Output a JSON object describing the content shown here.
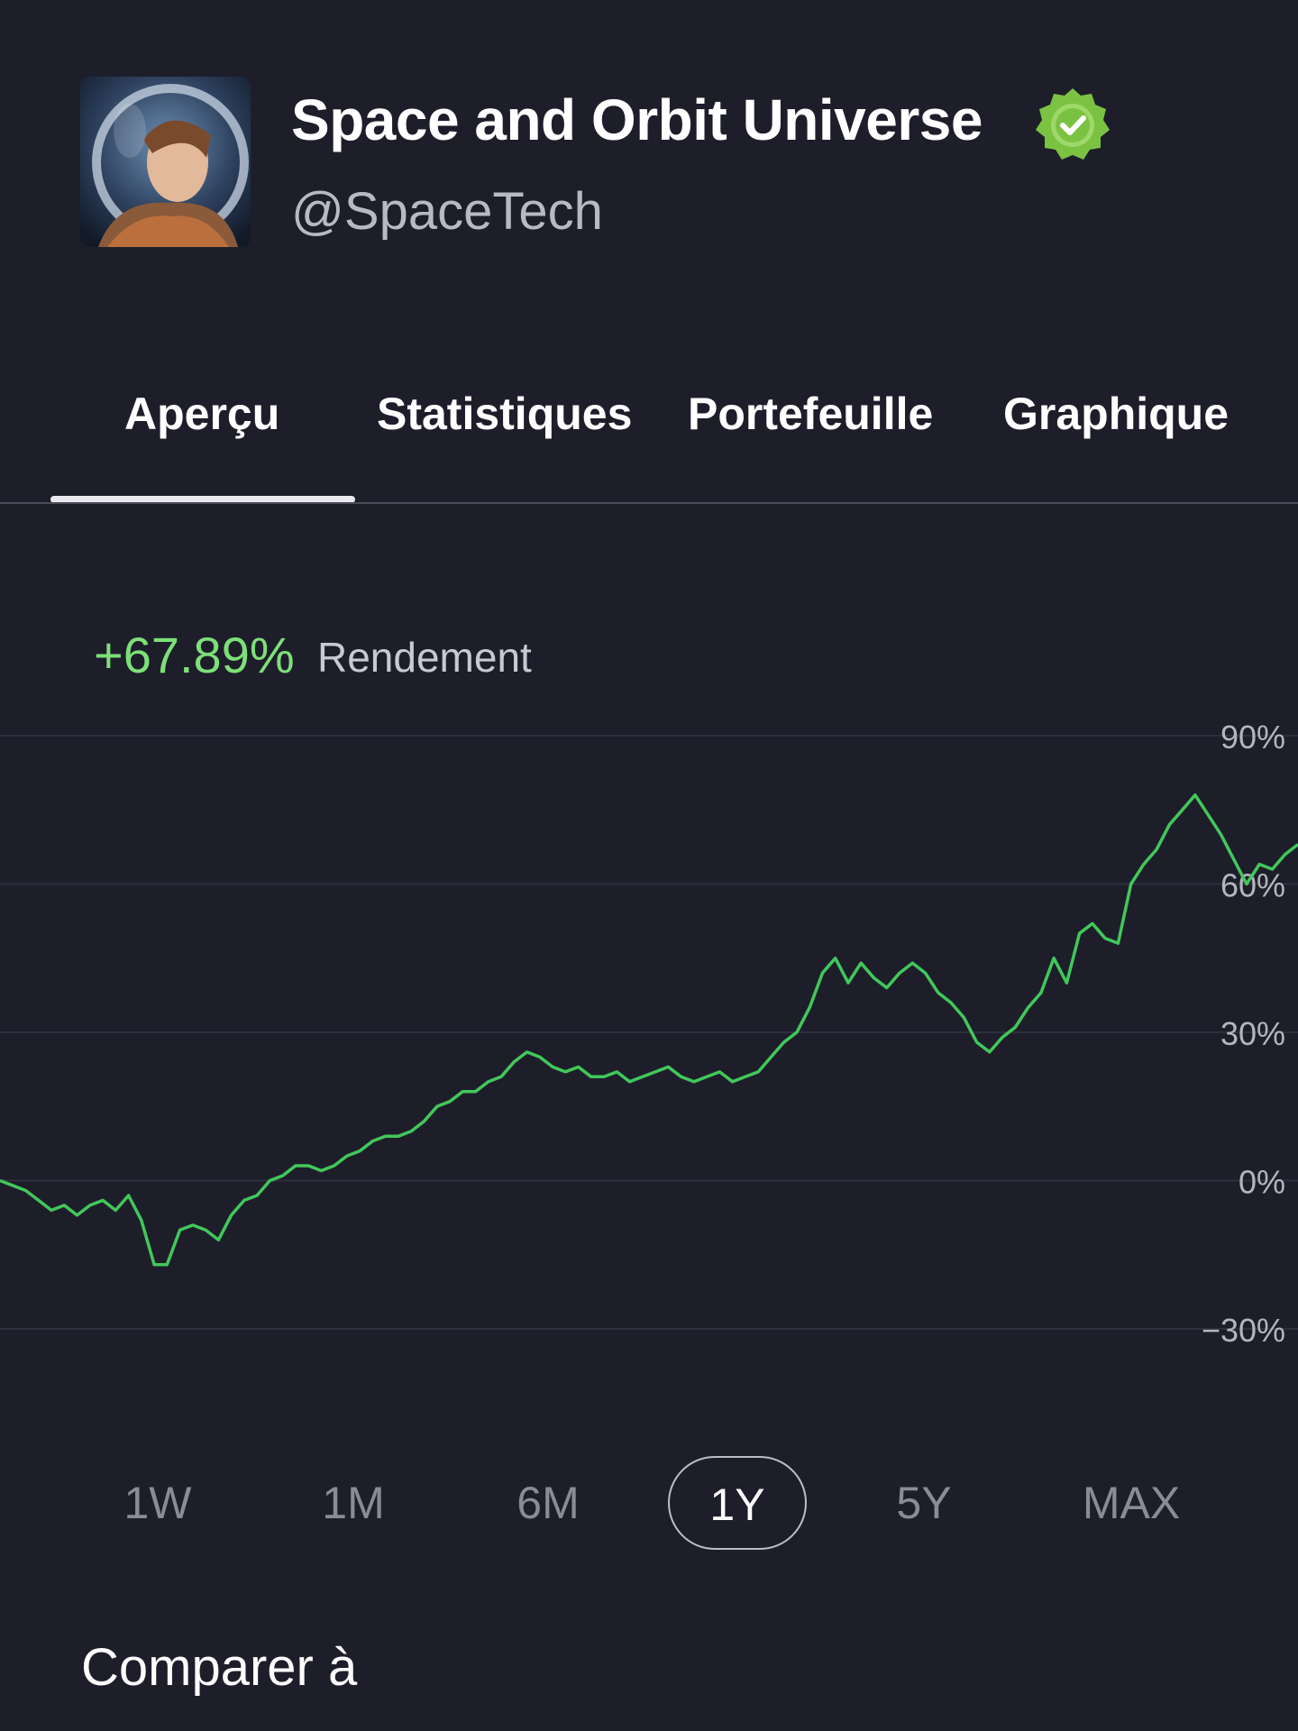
{
  "profile": {
    "name": "Space and Orbit Universe",
    "handle": "@SpaceTech",
    "avatar_icon": "astronaut-avatar-icon",
    "verified_icon": "verified-badge-icon",
    "verified_color": "#7cc242"
  },
  "tabs": [
    {
      "label": "Aperçu",
      "active": true
    },
    {
      "label": "Statistiques",
      "active": false
    },
    {
      "label": "Portefeuille",
      "active": false
    },
    {
      "label": "Graphique",
      "active": false
    }
  ],
  "performance": {
    "value": "+67.89%",
    "label": "Rendement",
    "value_color": "#7ddf78"
  },
  "chart_data": {
    "type": "line",
    "title": "",
    "xlabel": "",
    "ylabel": "",
    "ylim": [
      -30,
      90
    ],
    "y_ticks": [
      "90%",
      "60%",
      "30%",
      "0%",
      "−30%"
    ],
    "y_tick_values": [
      90,
      60,
      30,
      0,
      -30
    ],
    "grid": true,
    "line_color": "#41c85a",
    "series": [
      {
        "values": [
          0,
          -1,
          -2,
          -4,
          -6,
          -5,
          -7,
          -5,
          -4,
          -6,
          -3,
          -8,
          -17,
          -17,
          -10,
          -9,
          -10,
          -12,
          -7,
          -4,
          -3,
          0,
          1,
          3,
          3,
          2,
          3,
          5,
          6,
          8,
          9,
          9,
          10,
          12,
          15,
          16,
          18,
          18,
          20,
          21,
          24,
          26,
          25,
          23,
          22,
          23,
          21,
          21,
          22,
          20,
          21,
          22,
          23,
          21,
          20,
          21,
          22,
          20,
          21,
          22,
          25,
          28,
          30,
          35,
          42,
          45,
          40,
          44,
          41,
          39,
          42,
          44,
          42,
          38,
          36,
          33,
          28,
          26,
          29,
          31,
          35,
          38,
          45,
          40,
          50,
          52,
          49,
          48,
          60,
          64,
          67,
          72,
          75,
          78,
          74,
          70,
          65,
          60,
          64,
          63,
          66,
          68
        ]
      }
    ]
  },
  "periods": [
    {
      "label": "1W",
      "active": false
    },
    {
      "label": "1M",
      "active": false
    },
    {
      "label": "6M",
      "active": false
    },
    {
      "label": "1Y",
      "active": true
    },
    {
      "label": "5Y",
      "active": false
    },
    {
      "label": "MAX",
      "active": false
    }
  ],
  "compare": {
    "label": "Comparer à"
  }
}
